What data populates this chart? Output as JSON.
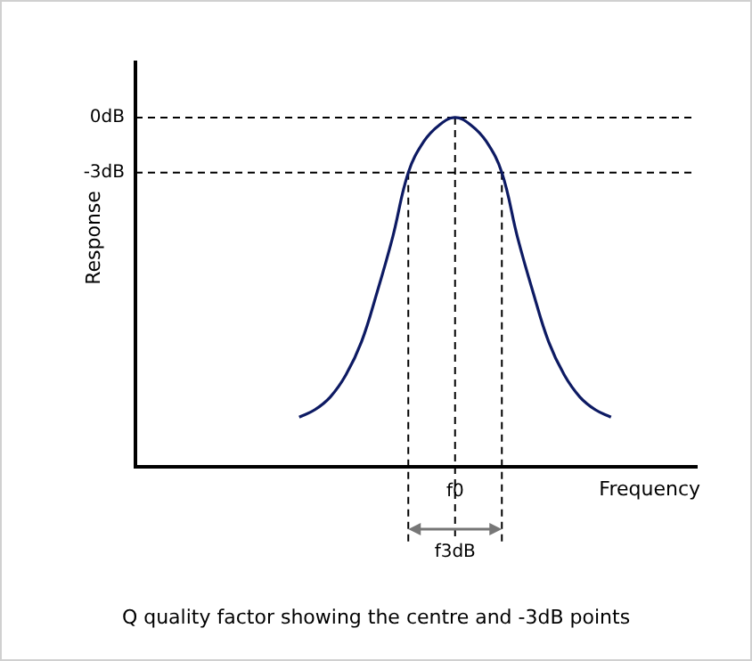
{
  "chart_data": {
    "type": "line",
    "xlabel": "Frequency",
    "ylabel": "Response",
    "marker": "none",
    "line_style": "solid",
    "categories": [
      null,
      null,
      null,
      null,
      null,
      null,
      null,
      null,
      null,
      null,
      null,
      null,
      null,
      null,
      null,
      null,
      null,
      null,
      null,
      null,
      "f0",
      null,
      null,
      null,
      null,
      null,
      null,
      null,
      null,
      null,
      null,
      null,
      null,
      null,
      null,
      null
    ],
    "series": [
      {
        "color": "#0d1a63",
        "values": [
          null,
          null,
          null,
          null,
          null,
          null,
          null,
          null,
          null,
          null,
          -16.3,
          -15.9,
          -15.2,
          -14,
          -12.2,
          -9.5,
          -6.5,
          -3,
          -1.3,
          -0.4,
          0,
          -0.4,
          -1.3,
          -3,
          -6.5,
          -9.5,
          -12.2,
          -14,
          -15.2,
          -15.9,
          -16.3,
          null,
          null,
          null,
          null,
          null
        ]
      }
    ],
    "ylim": [
      -19,
      3
    ],
    "yticks": [
      {
        "value": 0,
        "label": "0dB"
      },
      {
        "value": -3,
        "label": "-3dB"
      }
    ],
    "ref_lines": [
      {
        "axis": "y",
        "value": 0,
        "color": "#000000",
        "line_style": "dashed"
      },
      {
        "axis": "y",
        "value": -3,
        "color": "#000000",
        "line_style": "dashed"
      }
    ],
    "annotations": [
      "f3dB",
      "Q quality factor showing the centre and -3dB points"
    ]
  }
}
